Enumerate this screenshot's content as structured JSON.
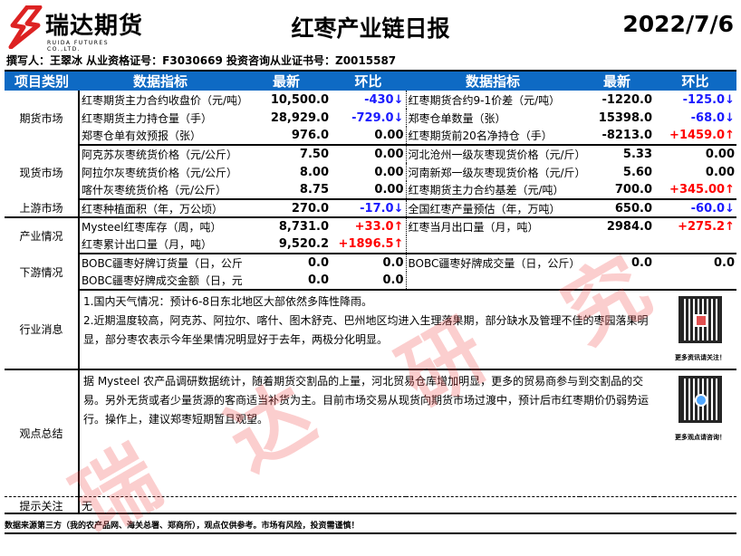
{
  "header": {
    "logo_cn": "瑞达期货",
    "logo_en": "RUIDA FUTURES CO.,LTD.",
    "title": "红枣产业链日报",
    "date": "2022/7/6",
    "author_line": "撰写人：王翠冰   从业资格证号：F3030669    投资咨询从业证书号：Z0015587"
  },
  "columns": [
    "项目类别",
    "数据指标",
    "最新",
    "环比",
    "数据指标",
    "最新",
    "环比"
  ],
  "colors": {
    "header_bg": "#0e6ac4",
    "up": "#ff0000",
    "down": "#1a1aff"
  },
  "sections": [
    {
      "category": "期货市场",
      "rows": [
        {
          "l_name": "红枣期货主力合约收盘价（元/吨）",
          "l_val": "10,500.0",
          "l_chg": "-430↓",
          "l_dir": "down",
          "r_name": "红枣期货合约9-1价差（元/吨）",
          "r_val": "-1220.0",
          "r_chg": "-125.0↓",
          "r_dir": "down"
        },
        {
          "l_name": "红枣期货主力持仓量（手）",
          "l_val": "28,929.0",
          "l_chg": "-729.0↓",
          "l_dir": "down",
          "r_name": "郑枣仓单数量（张）",
          "r_val": "15398.0",
          "r_chg": "-68.0↓",
          "r_dir": "down"
        },
        {
          "l_name": "郑枣仓单有效预报（张）",
          "l_val": "976.0",
          "l_chg": "0.00",
          "l_dir": "flat",
          "r_name": "红枣期货前20名净持仓（手）",
          "r_val": "-8213.0",
          "r_chg": "+1459.0↑",
          "r_dir": "up"
        }
      ]
    },
    {
      "category": "现货市场",
      "rows": [
        {
          "l_name": "阿克苏灰枣统货价格（元/公斤）",
          "l_val": "7.50",
          "l_chg": "0.00",
          "l_dir": "flat",
          "r_name": "河北沧州一级灰枣现货价格（元/斤）",
          "r_val": "5.33",
          "r_chg": "0.00",
          "r_dir": "flat"
        },
        {
          "l_name": "阿拉尔灰枣统货价格（元/公斤）",
          "l_val": "8.00",
          "l_chg": "0.00",
          "l_dir": "flat",
          "r_name": "河南新郑一级灰枣现货价格（元/斤）",
          "r_val": "5.60",
          "r_chg": "0.00",
          "r_dir": "flat"
        },
        {
          "l_name": "喀什灰枣统货价格（元/公斤）",
          "l_val": "8.75",
          "l_chg": "0.00",
          "l_dir": "flat",
          "r_name": "红枣期货主力合约基差（元/吨）",
          "r_val": "700.0",
          "r_chg": "+345.00↑",
          "r_dir": "up"
        }
      ]
    },
    {
      "category": "上游市场",
      "rows": [
        {
          "l_name": "红枣种植面积（年，万公顷）",
          "l_val": "270.0",
          "l_chg": "-17.0↓",
          "l_dir": "down",
          "r_name": "全国红枣产量预估（年，万吨）",
          "r_val": "650.0",
          "r_chg": "-60.0↓",
          "r_dir": "down"
        }
      ]
    },
    {
      "category": "产业情况",
      "rows": [
        {
          "l_name": "Mysteel红枣库存（周，吨）",
          "l_val": "8,731.0",
          "l_chg": "+33.0↑",
          "l_dir": "up",
          "r_name": "红枣当月出口量（月，吨）",
          "r_val": "2984.0",
          "r_chg": "+275.2↑",
          "r_dir": "up"
        },
        {
          "l_name": "红枣累计出口量（月，吨）",
          "l_val": "9,520.2",
          "l_chg": "+1896.5↑",
          "l_dir": "up",
          "r_name": "",
          "r_val": "",
          "r_chg": "",
          "r_dir": "flat"
        }
      ]
    },
    {
      "category": "下游情况",
      "rows": [
        {
          "l_name": "BOBC疆枣好牌订货量（日，公斤）",
          "l_val": "0.0",
          "l_chg": "0.0",
          "l_dir": "flat",
          "r_name": "BOBC疆枣好牌成交量（日，公斤）",
          "r_val": "0.0",
          "r_chg": "0.0",
          "r_dir": "flat"
        },
        {
          "l_name": "BOBC疆枣好牌成交金额（日，元）",
          "l_val": "0.0",
          "l_chg": "0.0",
          "l_dir": "flat",
          "r_name": "",
          "r_val": "",
          "r_chg": "",
          "r_dir": "flat"
        }
      ]
    }
  ],
  "news": {
    "category": "行业消息",
    "lines": [
      "1.国内天气情况：预计6-8日东北地区大部依然多阵性降雨。",
      "2.近期温度较高，阿克苏、阿拉尔、喀什、图木舒克、巴州地区均进入生理落果期，部分缺水及管理不佳的枣园落果明显，部分枣农表示今年坐果情况明显好于去年，两极分化明显。"
    ],
    "qr_caption": "更多资讯请关注！"
  },
  "summary": {
    "category": "观点总结",
    "text": "据 Mysteel 农产品调研数据统计，随着期货交割品的上量，河北贸易仓库增加明显，更多的贸易商参与到交割品的交易。另外无货或者少量货源的客商适当补货为主。目前市场交易从现货向期货市场过渡中，预计后市红枣期价仍弱势运行。操作上，建议郑枣短期暂且观望。",
    "qr_caption": "更多观点请咨询！"
  },
  "hint": {
    "category": "提示关注",
    "text": "无"
  },
  "footer": "数据来源第三方（我的农产品网、海关总署、郑商所），观点仅供参考。市场有风险，投资需谨慎！",
  "watermark": [
    "瑞",
    "达",
    "研",
    "究"
  ]
}
